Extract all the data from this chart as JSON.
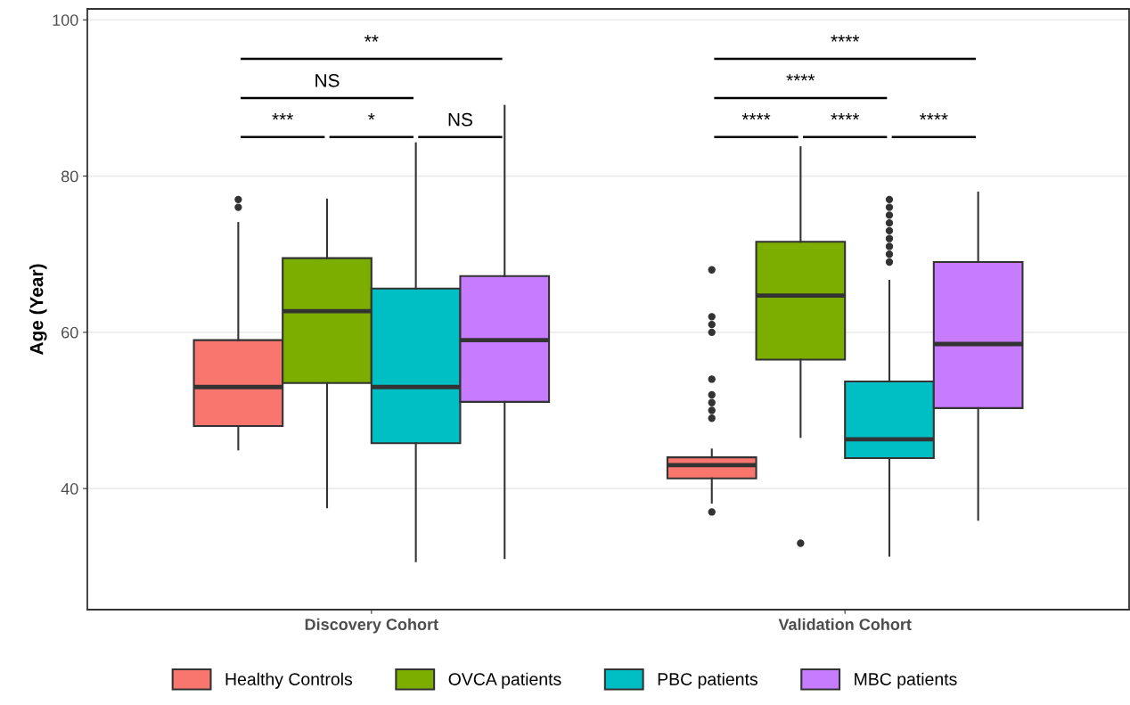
{
  "chart_data": {
    "type": "box",
    "ylabel": "Age (Year)",
    "categories": [
      "Discovery Cohort",
      "Validation Cohort"
    ],
    "series": [
      {
        "name": "Healthy Controls",
        "color": "#f8766d",
        "boxes": [
          {
            "low": 45,
            "q1": 48,
            "median": 53,
            "q3": 59,
            "high": 74,
            "outliers": [
              77,
              76
            ]
          },
          {
            "low": 38.2,
            "q1": 41.3,
            "median": 43,
            "q3": 44,
            "high": 45,
            "outliers": [
              68,
              62,
              61,
              60,
              54,
              52,
              51,
              50,
              49,
              37
            ]
          }
        ]
      },
      {
        "name": "OVCA patients",
        "color": "#7cae00",
        "boxes": [
          {
            "low": 37.6,
            "q1": 53.5,
            "median": 62.7,
            "q3": 69.5,
            "high": 77
          },
          {
            "low": 46.6,
            "q1": 56.5,
            "median": 64.7,
            "q3": 71.6,
            "high": 83.7,
            "outliers": [
              33
            ]
          }
        ]
      },
      {
        "name": "PBC patients",
        "color": "#00bfc4",
        "boxes": [
          {
            "low": 30.7,
            "q1": 45.8,
            "median": 53,
            "q3": 65.6,
            "high": 84.2
          },
          {
            "low": 31.4,
            "q1": 43.9,
            "median": 46.3,
            "q3": 53.7,
            "high": 66.6,
            "outliers": [
              77,
              76,
              75,
              74,
              73,
              72,
              71,
              70,
              69
            ]
          }
        ]
      },
      {
        "name": "MBC patients",
        "color": "#c77cff",
        "boxes": [
          {
            "low": 31.1,
            "q1": 51.1,
            "median": 59,
            "q3": 67.2,
            "high": 89
          },
          {
            "low": 36,
            "q1": 50.3,
            "median": 58.5,
            "q3": 69,
            "high": 77.9
          }
        ]
      }
    ],
    "annotations": [
      "***",
      "*",
      "NS",
      "NS",
      "**",
      "****",
      "****",
      "****",
      "****",
      "****"
    ],
    "ylim": [
      24.5,
      101.4
    ],
    "yticks": [
      40,
      60,
      80,
      100
    ],
    "grid": "y",
    "legend": "bottom",
    "marker": "circle"
  }
}
